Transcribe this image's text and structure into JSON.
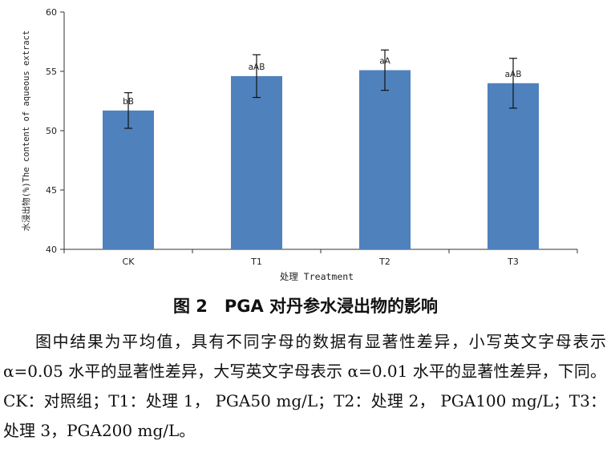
{
  "chart_data": {
    "type": "bar",
    "categories": [
      "CK",
      "T1",
      "T2",
      "T3"
    ],
    "values": [
      51.7,
      54.6,
      55.1,
      54.0
    ],
    "errors": [
      1.5,
      1.8,
      1.7,
      2.1
    ],
    "labels": [
      "bB",
      "aAB",
      "aA",
      "aAB"
    ],
    "xlabel": "处理 Treatment",
    "ylabel": "水浸出物(%)The content of aqueous extract",
    "ylim": [
      40,
      60
    ],
    "yticks": [
      40,
      45,
      50,
      55,
      60
    ],
    "bar_color": "#4f81bd",
    "grid": false
  },
  "caption": "图 2　PGA 对丹参水浸出物的影响",
  "note": "图中结果为平均值，具有不同字母的数据有显著性差异，小写英文字母表示 α=0.05 水平的显著性差异，大写英文字母表示 α=0.01 水平的显著性差异，下同。CK：对照组；T1：处理 1， PGA50 mg/L；T2：处理 2， PGA100 mg/L；T3：处理 3，PGA200 mg/L。"
}
